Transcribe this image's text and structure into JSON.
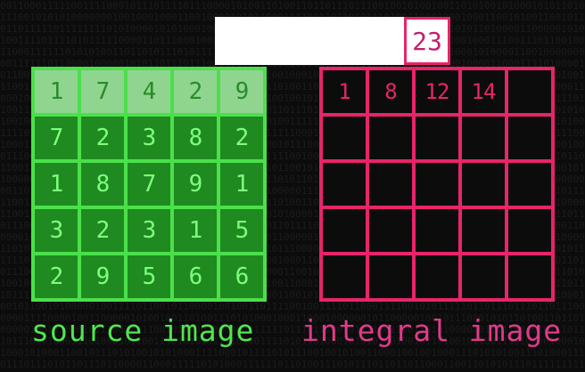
{
  "source": {
    "label": "source image",
    "highlighted_row": 0,
    "rows": [
      [
        "1",
        "7",
        "4",
        "2",
        "9"
      ],
      [
        "7",
        "2",
        "3",
        "8",
        "2"
      ],
      [
        "1",
        "8",
        "7",
        "9",
        "1"
      ],
      [
        "3",
        "2",
        "3",
        "1",
        "5"
      ],
      [
        "2",
        "9",
        "5",
        "6",
        "6"
      ]
    ]
  },
  "integral": {
    "label": "integral image",
    "rows": [
      [
        "1",
        "8",
        "12",
        "14",
        ""
      ],
      [
        "",
        "",
        "",
        "",
        ""
      ],
      [
        "",
        "",
        "",
        "",
        ""
      ],
      [
        "",
        "",
        "",
        "",
        ""
      ],
      [
        "",
        "",
        "",
        "",
        ""
      ]
    ]
  },
  "current_sum": "23",
  "colors": {
    "source": "#4be04b",
    "integral": "#e8246a",
    "background": "#0c0c0c"
  }
}
